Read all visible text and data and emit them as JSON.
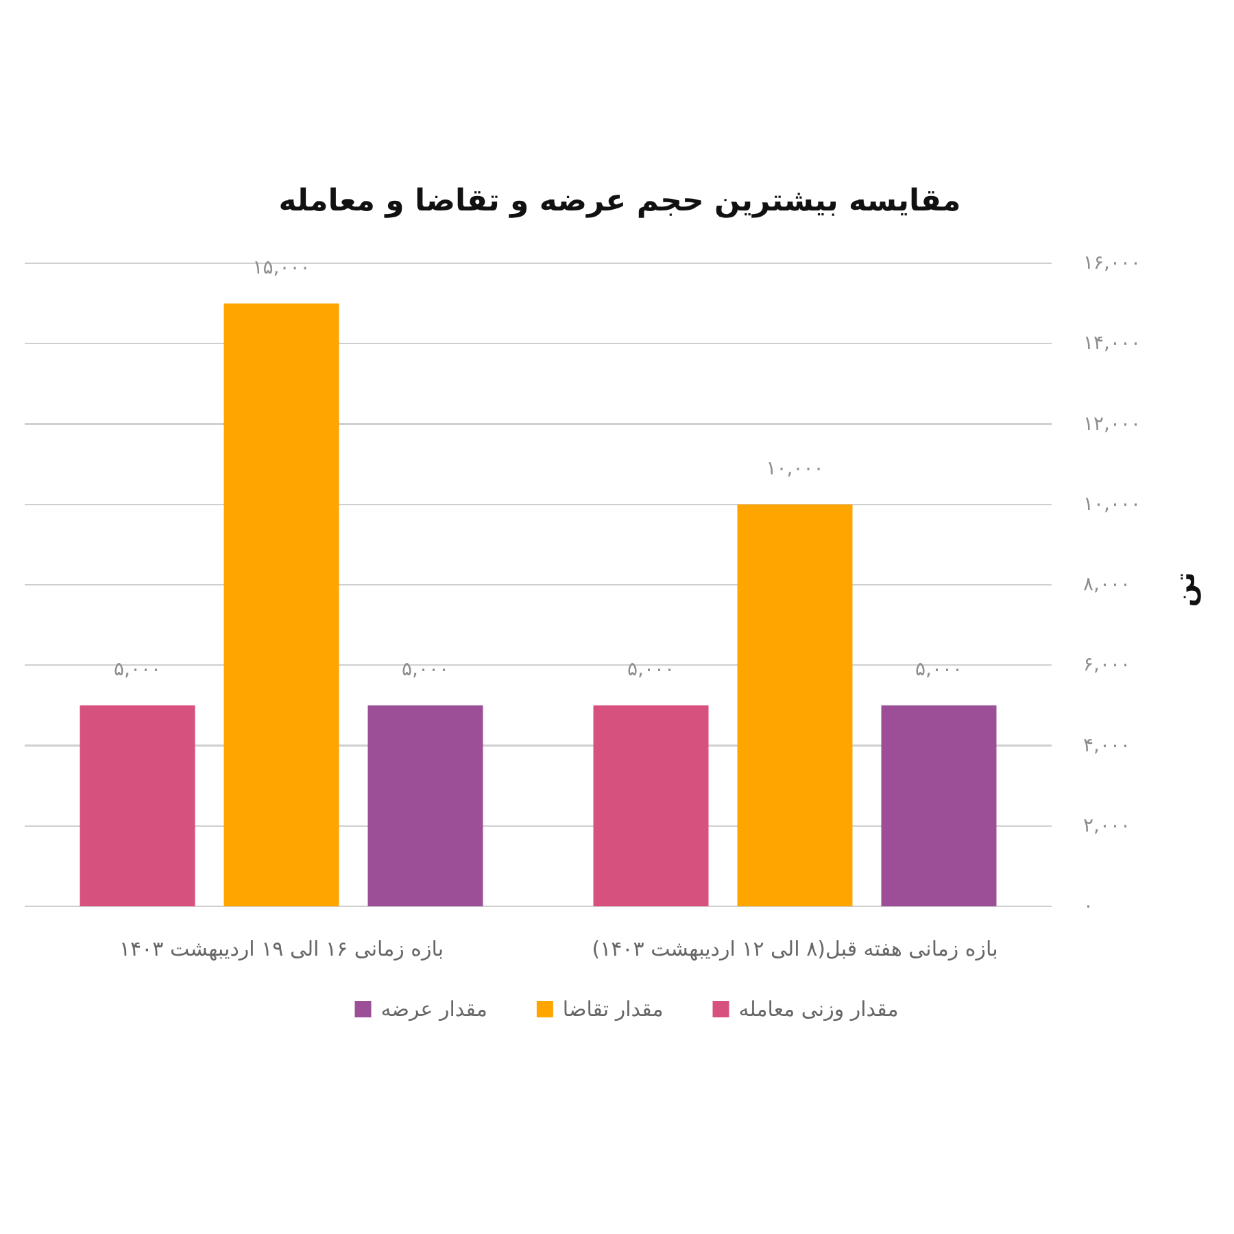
{
  "chart_data": {
    "type": "bar",
    "title": "مقایسه بیشترین حجم عرضه و تقاضا و معامله",
    "ylabel": "تن",
    "categories": [
      "بازه زمانی ۱۶ الی ۱۹ اردیبهشت ۱۴۰۳",
      "بازه زمانی هفته قبل(۸ الی ۱۲ اردیبهشت ۱۴۰۳)"
    ],
    "series": [
      {
        "name": "مقدار وزنی معامله",
        "color": "#d6517d",
        "values": [
          5000,
          5000
        ],
        "value_labels": [
          "۵,۰۰۰",
          "۵,۰۰۰"
        ]
      },
      {
        "name": "مقدار تقاضا",
        "color": "#ffa500",
        "values": [
          15000,
          10000
        ],
        "value_labels": [
          "۱۵,۰۰۰",
          "۱۰,۰۰۰"
        ]
      },
      {
        "name": "مقدار عرضه",
        "color": "#9c4f96",
        "values": [
          5000,
          5000
        ],
        "value_labels": [
          "۵,۰۰۰",
          "۵,۰۰۰"
        ]
      }
    ],
    "ylim": [
      0,
      16000
    ],
    "yticks": [
      {
        "value": 0,
        "label": "۰"
      },
      {
        "value": 2000,
        "label": "۲,۰۰۰"
      },
      {
        "value": 4000,
        "label": "۴,۰۰۰"
      },
      {
        "value": 6000,
        "label": "۶,۰۰۰"
      },
      {
        "value": 8000,
        "label": "۸,۰۰۰"
      },
      {
        "value": 10000,
        "label": "۱۰,۰۰۰"
      },
      {
        "value": 12000,
        "label": "۱۲,۰۰۰"
      },
      {
        "value": 14000,
        "label": "۱۴,۰۰۰"
      },
      {
        "value": 16000,
        "label": "۱۶,۰۰۰"
      }
    ],
    "grid": "y",
    "legend": "bottom"
  }
}
